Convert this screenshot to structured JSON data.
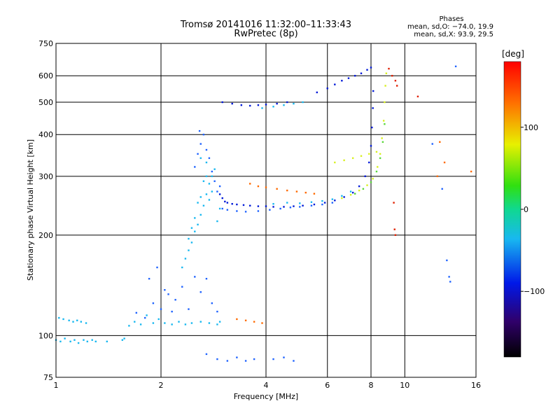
{
  "header": {
    "title_line1": "Tromsø 20141016 11:32:00–11:33:43",
    "title_line2": "RwPretec (8p)"
  },
  "stats": {
    "heading": "Phases",
    "line_o": "mean, sd,O: −74.0, 19.9",
    "line_x": "mean, sd,X:  93.9, 29.5"
  },
  "colorbar": {
    "unit": "[deg]",
    "ticks": [
      {
        "value": 100,
        "label": "100"
      },
      {
        "value": 0,
        "label": "0"
      },
      {
        "value": -100,
        "label": "−100"
      }
    ],
    "range": [
      -180,
      180
    ]
  },
  "colors": {
    "grid": "#000000",
    "dark_blue": "#0019d8",
    "mid_blue": "#1f63ff",
    "cyan": "#18b8f0",
    "green": "#5ad83a",
    "yellow": "#d8f020",
    "orange": "#ff6a00",
    "red": "#e02000"
  },
  "chart_data": {
    "type": "scatter",
    "title": "Tromsø 20141016 11:32:00–11:33:43",
    "subtitle": "RwPretec (8p)",
    "xlabel": "Frequency [MHz]",
    "ylabel": "Stationary phase Virtual Height [km]",
    "xscale": "log",
    "yscale": "log",
    "xlim": [
      1,
      16
    ],
    "ylim": [
      75,
      750
    ],
    "xticks": [
      {
        "value": 1,
        "label": "1"
      },
      {
        "value": 2,
        "label": "2"
      },
      {
        "value": 4,
        "label": "4"
      },
      {
        "value": 6,
        "label": "6"
      },
      {
        "value": 8,
        "label": "8"
      },
      {
        "value": 10,
        "label": "10"
      },
      {
        "value": 16,
        "label": "16"
      }
    ],
    "yticks": [
      {
        "value": 75,
        "label": "75"
      },
      {
        "value": 100,
        "label": "100"
      },
      {
        "value": 200,
        "label": "200"
      },
      {
        "value": 300,
        "label": "300"
      },
      {
        "value": 400,
        "label": "400"
      },
      {
        "value": 500,
        "label": "500"
      },
      {
        "value": 600,
        "label": "600"
      },
      {
        "value": 750,
        "label": "750"
      }
    ],
    "grid": true,
    "series": [
      {
        "color": "cyan",
        "points": [
          [
            1.0,
            97
          ],
          [
            1.03,
            96
          ],
          [
            1.06,
            98
          ],
          [
            1.1,
            96
          ],
          [
            1.13,
            97
          ],
          [
            1.16,
            95
          ],
          [
            1.2,
            97
          ],
          [
            1.23,
            96
          ],
          [
            1.27,
            97
          ],
          [
            1.3,
            96
          ],
          [
            1.4,
            96
          ],
          [
            1.55,
            97
          ],
          [
            1.57,
            98
          ]
        ]
      },
      {
        "color": "cyan",
        "points": [
          [
            1.02,
            113
          ],
          [
            1.05,
            112
          ],
          [
            1.09,
            111
          ],
          [
            1.12,
            110
          ],
          [
            1.15,
            111
          ],
          [
            1.18,
            110
          ],
          [
            1.22,
            109
          ]
        ]
      },
      {
        "color": "cyan",
        "points": [
          [
            1.62,
            107
          ],
          [
            1.68,
            110
          ],
          [
            1.75,
            108
          ],
          [
            1.82,
            115
          ],
          [
            1.9,
            109
          ],
          [
            1.97,
            112
          ],
          [
            2.05,
            109
          ],
          [
            2.15,
            108
          ],
          [
            2.25,
            110
          ],
          [
            2.35,
            108
          ],
          [
            2.45,
            109
          ],
          [
            2.6,
            110
          ],
          [
            2.75,
            109
          ],
          [
            2.9,
            108
          ],
          [
            2.95,
            110
          ]
        ]
      },
      {
        "color": "mid_blue",
        "points": [
          [
            1.7,
            117
          ],
          [
            1.8,
            113
          ],
          [
            1.9,
            125
          ],
          [
            2.0,
            120
          ],
          [
            2.1,
            133
          ],
          [
            2.2,
            128
          ],
          [
            2.3,
            140
          ],
          [
            2.4,
            120
          ],
          [
            2.5,
            150
          ],
          [
            2.6,
            135
          ],
          [
            2.7,
            148
          ],
          [
            2.8,
            125
          ],
          [
            2.9,
            118
          ],
          [
            1.85,
            148
          ],
          [
            1.95,
            160
          ],
          [
            2.05,
            137
          ],
          [
            2.15,
            118
          ]
        ]
      },
      {
        "color": "cyan",
        "points": [
          [
            2.3,
            160
          ],
          [
            2.35,
            170
          ],
          [
            2.4,
            180
          ],
          [
            2.45,
            190
          ],
          [
            2.5,
            205
          ],
          [
            2.55,
            215
          ],
          [
            2.6,
            230
          ],
          [
            2.65,
            245
          ],
          [
            2.7,
            265
          ],
          [
            2.75,
            285
          ],
          [
            2.8,
            300
          ],
          [
            2.85,
            315
          ],
          [
            2.4,
            195
          ],
          [
            2.5,
            225
          ],
          [
            2.6,
            260
          ],
          [
            2.7,
            300
          ],
          [
            2.6,
            340
          ],
          [
            2.7,
            330
          ],
          [
            2.55,
            250
          ],
          [
            2.45,
            210
          ],
          [
            2.75,
            255
          ],
          [
            2.8,
            270
          ],
          [
            2.65,
            290
          ],
          [
            2.9,
            220
          ],
          [
            2.95,
            240
          ]
        ]
      },
      {
        "color": "mid_blue",
        "points": [
          [
            2.5,
            320
          ],
          [
            2.55,
            350
          ],
          [
            2.6,
            375
          ],
          [
            2.65,
            400
          ],
          [
            2.58,
            410
          ],
          [
            2.7,
            360
          ],
          [
            2.75,
            340
          ],
          [
            2.8,
            310
          ],
          [
            2.85,
            290
          ],
          [
            2.9,
            270
          ],
          [
            2.95,
            280
          ]
        ]
      },
      {
        "color": "dark_blue",
        "points": [
          [
            2.95,
            265
          ],
          [
            3.0,
            258
          ],
          [
            3.05,
            252
          ],
          [
            3.1,
            250
          ],
          [
            3.2,
            248
          ],
          [
            3.3,
            247
          ],
          [
            3.45,
            246
          ],
          [
            3.6,
            245
          ],
          [
            3.8,
            244
          ],
          [
            4.0,
            244
          ],
          [
            4.2,
            243
          ],
          [
            4.5,
            243
          ],
          [
            4.8,
            244
          ],
          [
            5.1,
            245
          ],
          [
            5.5,
            247
          ],
          [
            5.9,
            250
          ],
          [
            6.3,
            254
          ],
          [
            6.7,
            260
          ],
          [
            7.1,
            268
          ],
          [
            7.4,
            280
          ],
          [
            7.7,
            300
          ],
          [
            7.9,
            330
          ],
          [
            8.0,
            370
          ],
          [
            8.05,
            420
          ],
          [
            8.1,
            480
          ],
          [
            8.12,
            540
          ]
        ]
      },
      {
        "color": "mid_blue",
        "points": [
          [
            3.0,
            240
          ],
          [
            3.1,
            238
          ],
          [
            3.3,
            236
          ],
          [
            3.5,
            235
          ],
          [
            3.8,
            236
          ],
          [
            4.1,
            238
          ],
          [
            4.4,
            240
          ],
          [
            4.7,
            242
          ],
          [
            5.0,
            243
          ],
          [
            5.4,
            245
          ],
          [
            5.8,
            247
          ],
          [
            6.2,
            250
          ]
        ]
      },
      {
        "color": "cyan",
        "points": [
          [
            4.2,
            248
          ],
          [
            4.6,
            250
          ],
          [
            5.0,
            249
          ],
          [
            5.4,
            251
          ],
          [
            5.8,
            253
          ],
          [
            6.2,
            256
          ],
          [
            6.6,
            262
          ],
          [
            7.0,
            270
          ]
        ]
      },
      {
        "color": "yellow",
        "points": [
          [
            6.6,
            258
          ],
          [
            7.0,
            264
          ],
          [
            7.4,
            272
          ],
          [
            7.8,
            282
          ],
          [
            8.1,
            295
          ],
          [
            8.35,
            320
          ],
          [
            8.5,
            350
          ],
          [
            8.6,
            390
          ],
          [
            8.7,
            440
          ],
          [
            8.75,
            500
          ],
          [
            8.8,
            560
          ],
          [
            8.85,
            610
          ]
        ]
      },
      {
        "color": "green",
        "points": [
          [
            7.2,
            266
          ],
          [
            7.6,
            275
          ],
          [
            8.0,
            288
          ],
          [
            8.3,
            310
          ],
          [
            8.5,
            340
          ],
          [
            8.65,
            380
          ],
          [
            8.75,
            430
          ]
        ]
      },
      {
        "color": "yellow",
        "points": [
          [
            6.3,
            330
          ],
          [
            6.7,
            335
          ],
          [
            7.1,
            340
          ],
          [
            7.5,
            345
          ],
          [
            7.9,
            350
          ],
          [
            8.3,
            355
          ]
        ]
      },
      {
        "color": "dark_blue",
        "points": [
          [
            5.6,
            535
          ],
          [
            6.0,
            550
          ],
          [
            6.3,
            565
          ],
          [
            6.6,
            580
          ],
          [
            6.9,
            590
          ],
          [
            7.2,
            600
          ],
          [
            7.5,
            610
          ],
          [
            7.8,
            625
          ],
          [
            8.0,
            635
          ]
        ]
      },
      {
        "color": "dark_blue",
        "points": [
          [
            3.0,
            500
          ],
          [
            3.2,
            495
          ],
          [
            3.4,
            490
          ],
          [
            3.6,
            488
          ],
          [
            3.8,
            490
          ],
          [
            4.0,
            492
          ],
          [
            4.3,
            495
          ],
          [
            4.6,
            500
          ]
        ]
      },
      {
        "color": "cyan",
        "points": [
          [
            3.9,
            480
          ],
          [
            4.2,
            485
          ],
          [
            4.5,
            490
          ],
          [
            4.8,
            495
          ],
          [
            5.1,
            500
          ]
        ]
      },
      {
        "color": "orange",
        "points": [
          [
            3.6,
            285
          ],
          [
            3.8,
            280
          ],
          [
            4.0,
            278
          ],
          [
            4.3,
            275
          ],
          [
            4.6,
            272
          ],
          [
            4.9,
            270
          ],
          [
            5.2,
            268
          ],
          [
            5.5,
            266
          ]
        ]
      },
      {
        "color": "orange",
        "points": [
          [
            3.3,
            112
          ],
          [
            3.5,
            111
          ],
          [
            3.7,
            110
          ],
          [
            3.9,
            109
          ]
        ]
      },
      {
        "color": "red",
        "points": [
          [
            9.0,
            630
          ],
          [
            9.2,
            600
          ],
          [
            9.4,
            580
          ],
          [
            9.5,
            560
          ],
          [
            10.9,
            520
          ],
          [
            9.3,
            250
          ],
          [
            9.35,
            208
          ],
          [
            9.4,
            200
          ]
        ]
      },
      {
        "color": "mid_blue",
        "points": [
          [
            12.0,
            375
          ],
          [
            12.8,
            275
          ],
          [
            13.2,
            168
          ],
          [
            13.4,
            150
          ],
          [
            13.5,
            145
          ],
          [
            14.0,
            640
          ]
        ]
      },
      {
        "color": "orange",
        "points": [
          [
            12.6,
            380
          ],
          [
            13.0,
            330
          ],
          [
            12.4,
            300
          ],
          [
            15.5,
            310
          ]
        ]
      },
      {
        "color": "mid_blue",
        "points": [
          [
            2.7,
            88
          ],
          [
            2.9,
            85
          ],
          [
            3.1,
            84
          ],
          [
            3.3,
            86
          ],
          [
            3.5,
            84
          ],
          [
            3.7,
            85
          ],
          [
            4.2,
            85
          ],
          [
            4.5,
            86
          ],
          [
            4.8,
            84
          ]
        ]
      }
    ]
  }
}
